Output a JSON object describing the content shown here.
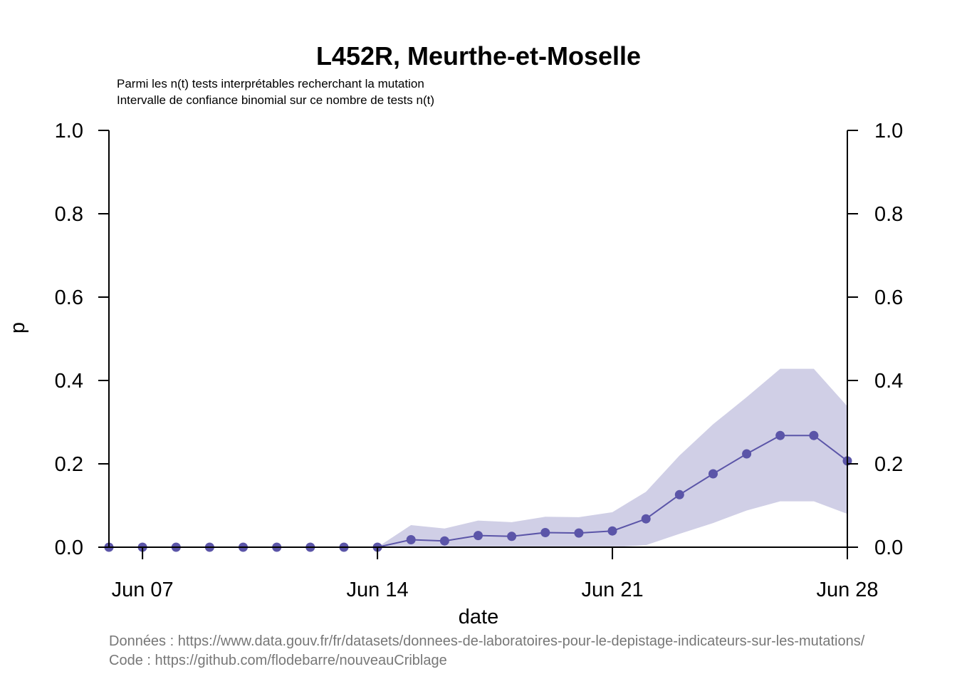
{
  "chart_data": {
    "type": "line",
    "title": "L452R, Meurthe-et-Moselle",
    "subtitle_lines": [
      "Parmi les n(t) tests interprétables recherchant la mutation",
      "Intervalle de confiance binomial sur ce nombre de tests n(t)"
    ],
    "xlabel": "date",
    "ylabel": "p",
    "ylim": [
      0,
      1
    ],
    "xlim": [
      "2021-06-06",
      "2021-06-28"
    ],
    "x_ticks": [
      {
        "date": "2021-06-07",
        "label": "Jun 07"
      },
      {
        "date": "2021-06-14",
        "label": "Jun 14"
      },
      {
        "date": "2021-06-21",
        "label": "Jun 21"
      },
      {
        "date": "2021-06-28",
        "label": "Jun 28"
      }
    ],
    "y_ticks": [
      "0.0",
      "0.2",
      "0.4",
      "0.6",
      "0.8",
      "1.0"
    ],
    "series": [
      {
        "color": "#5b55a8",
        "ci_color": "#d0cfe6",
        "x": [
          "2021-06-06",
          "2021-06-07",
          "2021-06-08",
          "2021-06-09",
          "2021-06-10",
          "2021-06-11",
          "2021-06-12",
          "2021-06-13",
          "2021-06-14",
          "2021-06-15",
          "2021-06-16",
          "2021-06-17",
          "2021-06-18",
          "2021-06-19",
          "2021-06-20",
          "2021-06-21",
          "2021-06-22",
          "2021-06-23",
          "2021-06-24",
          "2021-06-25",
          "2021-06-26",
          "2021-06-27",
          "2021-06-28"
        ],
        "values": [
          0,
          0,
          0,
          0,
          0,
          0,
          0,
          0,
          0,
          0.018,
          0.015,
          0.028,
          0.026,
          0.035,
          0.034,
          0.039,
          0.068,
          0.126,
          0.176,
          0.224,
          0.268,
          0.268,
          0.207
        ],
        "lower": [
          0,
          0,
          0,
          0,
          0,
          0,
          0,
          0,
          0,
          0,
          0,
          0,
          0,
          0,
          0,
          0,
          0.005,
          0.032,
          0.058,
          0.088,
          0.11,
          0.11,
          0.08
        ],
        "upper": [
          0,
          0,
          0,
          0,
          0,
          0,
          0,
          0,
          0,
          0.053,
          0.045,
          0.064,
          0.06,
          0.073,
          0.072,
          0.084,
          0.133,
          0.22,
          0.295,
          0.36,
          0.428,
          0.428,
          0.338
        ]
      }
    ]
  },
  "footer": {
    "data_source": "Données : https://www.data.gouv.fr/fr/datasets/donnees-de-laboratoires-pour-le-depistage-indicateurs-sur-les-mutations/",
    "code_source": "Code : https://github.com/flodebarre/nouveauCriblage"
  }
}
